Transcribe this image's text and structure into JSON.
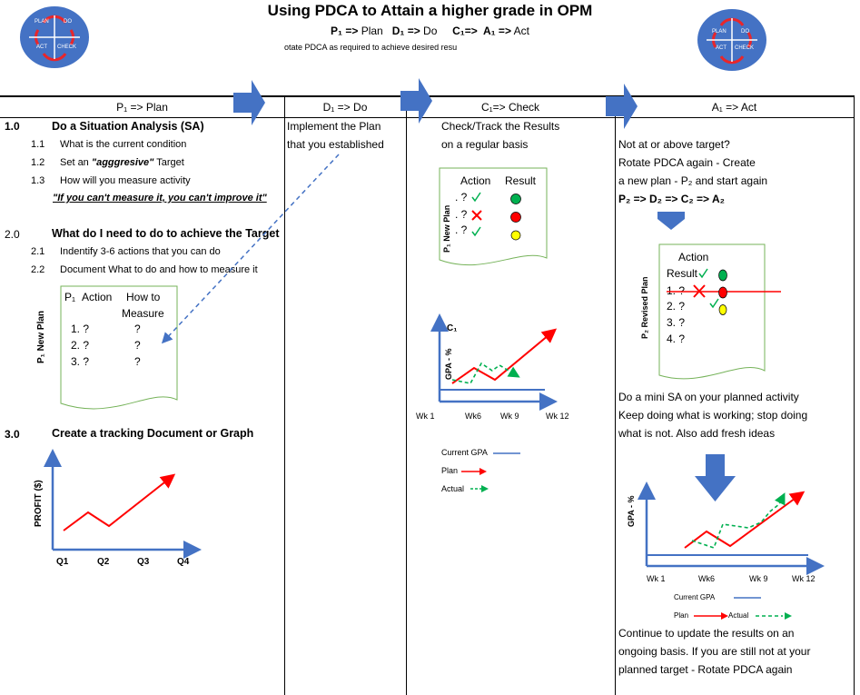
{
  "header": {
    "title": "Using PDCA to Attain a higher grade in OPM",
    "subtitle_p": "P₁ =>",
    "subtitle_plan": " Plan",
    "subtitle_d": "D₁ =>",
    "subtitle_do": " Do",
    "subtitle_c": "C₁=>",
    "subtitle_a": " A₁ =>",
    "subtitle_act": " Act",
    "subtitle2": "otate  PDCA as required to achieve desired resu"
  },
  "logo": {
    "plan": "PLAN",
    "do": "DO",
    "act": "ACT",
    "check": "CHECK"
  },
  "columns": {
    "plan": "P₁ => Plan",
    "do": "D₁ => Do",
    "check": "C₁=> Check",
    "act": "A₁ => Act"
  },
  "plan": {
    "s1_num": "1.0",
    "s1_title": "Do a Situation Analysis (SA)",
    "s11_num": "1.1",
    "s11_text": "What is the current condition",
    "s12_num": "1.2",
    "s12_text_a": "Set an ",
    "s12_text_b": "\"agggresive\"",
    "s12_text_c": " Target",
    "s13_num": "1.3",
    "s13_text": "How will you measure activity",
    "quote": "\"If you can't measure it, you can't improve it\"",
    "s2_num": "2.0",
    "s2_title": "What do I need to do to achieve the Target",
    "s21_num": "2.1",
    "s21_text": "Indentify 3-6 actions that you can do",
    "s22_num": "2.2",
    "s22_text": "Document What to do and how to measure it",
    "doc_side": "P₁ New Plan",
    "doc_p1": "P₁",
    "doc_action": "Action",
    "doc_how": "How to",
    "doc_measure": "Measure",
    "doc_rows": [
      "1. ?",
      "2. ?",
      "3. ?"
    ],
    "doc_q": [
      "?",
      "?",
      "?"
    ],
    "s3_num": "3.0",
    "s3_title": "Create a tracking Document or Graph",
    "graph_ylabel": "PROFIT ($)",
    "graph_x": [
      "Q1",
      "Q2",
      "Q3",
      "Q4"
    ]
  },
  "do": {
    "line1": "Implement the Plan",
    "line2": "that you established"
  },
  "check": {
    "line1": "Check/Track the Results",
    "line2": "on a regular basis",
    "doc_side": "P₁ New Plan",
    "doc_action": "Action",
    "doc_result": "Result",
    "doc_rows": [
      ". ?",
      ". ?",
      ". ?"
    ],
    "graph_label": "C₁",
    "graph_ylabel": "GPA - %",
    "graph_x": [
      "Wk 1",
      "Wk6",
      "Wk 9",
      "Wk 12"
    ],
    "legend_current": "Current GPA",
    "legend_plan": "Plan",
    "legend_actual": "Actual"
  },
  "act": {
    "line1": "Not at or above target?",
    "line2": "Rotate PDCA again - Create",
    "line3": "a new plan - P₂ and start again",
    "line4": "P₂ => D₂ => C₂ => A₂",
    "doc_side": "P₂  Revised Plan",
    "doc_action": "Action",
    "doc_result": "Result",
    "doc_rows": [
      "1. ?",
      "2. ?",
      "3. ?",
      "4. ?"
    ],
    "mini1": "Do a mini SA on your planned activity",
    "mini2": "Keep doing what is working; stop doing",
    "mini3": "what is not. Also add fresh ideas",
    "graph_ylabel": "GPA - %",
    "graph_x": [
      "Wk 1",
      "Wk6",
      "Wk 9",
      "Wk 12"
    ],
    "legend_current": "Current GPA",
    "legend_plan": "Plan",
    "legend_actual": "Actual",
    "cont1": "Continue to update the results on an",
    "cont2": "ongoing basis. If you are still not at your",
    "cont3": "planned target - Rotate PDCA again"
  },
  "colors": {
    "arrow_blue": "#4472c4",
    "green_doc": "#76b35a",
    "red": "#ff0000",
    "green": "#00b050",
    "yellow": "#ffff00"
  }
}
